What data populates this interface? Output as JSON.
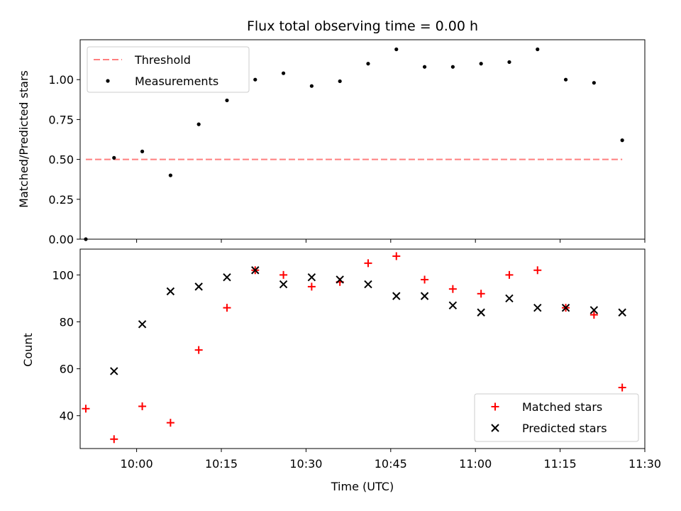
{
  "chart_data": [
    {
      "type": "scatter",
      "title": "Flux total observing time = 0.00 h",
      "xlabel": "",
      "ylabel": "Matched/Predicted stars",
      "xlim": [
        "09:50",
        "11:30"
      ],
      "ylim": [
        0,
        1.25
      ],
      "yticks": [
        0.0,
        0.25,
        0.5,
        0.75,
        1.0
      ],
      "ytick_labels": [
        "0.00",
        "0.25",
        "0.50",
        "0.75",
        "1.00"
      ],
      "legend_position": "top-left",
      "grid": false,
      "series": [
        {
          "name": "Threshold",
          "kind": "line",
          "style": "dashed",
          "color": "#ff7f7f",
          "x": [
            "09:51",
            "11:26"
          ],
          "y": [
            0.5,
            0.5
          ]
        },
        {
          "name": "Measurements",
          "kind": "scatter",
          "marker": "dot",
          "color": "#000000",
          "x": [
            "09:51",
            "09:56",
            "10:01",
            "10:06",
            "10:11",
            "10:16",
            "10:21",
            "10:26",
            "10:31",
            "10:36",
            "10:41",
            "10:46",
            "10:51",
            "10:56",
            "11:01",
            "11:06",
            "11:11",
            "11:16",
            "11:21",
            "11:26"
          ],
          "y": [
            0.0,
            0.51,
            0.55,
            0.4,
            0.72,
            0.87,
            1.0,
            1.04,
            0.96,
            0.99,
            1.1,
            1.19,
            1.08,
            1.08,
            1.1,
            1.11,
            1.19,
            1.0,
            0.98,
            0.62
          ]
        }
      ]
    },
    {
      "type": "scatter",
      "title": "",
      "xlabel": "Time (UTC)",
      "ylabel": "Count",
      "xlim": [
        "09:50",
        "11:30"
      ],
      "ylim": [
        26,
        111
      ],
      "xticks": [
        "10:00",
        "10:15",
        "10:30",
        "10:45",
        "11:00",
        "11:15",
        "11:30"
      ],
      "yticks": [
        40,
        60,
        80,
        100
      ],
      "ytick_labels": [
        "40",
        "60",
        "80",
        "100"
      ],
      "legend_position": "bottom-right",
      "grid": false,
      "series": [
        {
          "name": "Matched stars",
          "kind": "scatter",
          "marker": "plus",
          "color": "#ff0000",
          "x": [
            "09:51",
            "09:56",
            "10:01",
            "10:06",
            "10:11",
            "10:16",
            "10:21",
            "10:26",
            "10:31",
            "10:36",
            "10:41",
            "10:46",
            "10:51",
            "10:56",
            "11:01",
            "11:06",
            "11:11",
            "11:16",
            "11:21",
            "11:26"
          ],
          "y": [
            43,
            30,
            44,
            37,
            68,
            86,
            102,
            100,
            95,
            97,
            105,
            108,
            98,
            94,
            92,
            100,
            102,
            86,
            83,
            52
          ]
        },
        {
          "name": "Predicted stars",
          "kind": "scatter",
          "marker": "x",
          "color": "#000000",
          "x": [
            "09:56",
            "10:01",
            "10:06",
            "10:11",
            "10:16",
            "10:21",
            "10:26",
            "10:31",
            "10:36",
            "10:41",
            "10:46",
            "10:51",
            "10:56",
            "11:01",
            "11:06",
            "11:11",
            "11:16",
            "11:21",
            "11:26"
          ],
          "y": [
            59,
            79,
            93,
            95,
            99,
            102,
            96,
            99,
            98,
            96,
            91,
            91,
            87,
            84,
            90,
            86,
            86,
            85,
            84
          ]
        }
      ]
    }
  ]
}
